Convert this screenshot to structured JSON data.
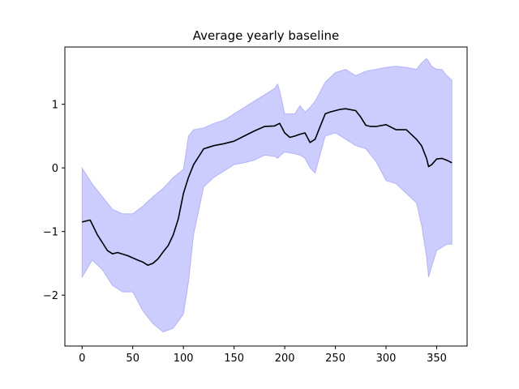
{
  "chart_data": {
    "type": "line",
    "title": "Average yearly baseline",
    "xlabel": "",
    "ylabel": "",
    "xlim": [
      -17,
      380
    ],
    "ylim": [
      -2.8,
      1.9
    ],
    "xticks": [
      0,
      50,
      100,
      150,
      200,
      250,
      300,
      350
    ],
    "xtick_labels": [
      "0",
      "50",
      "100",
      "150",
      "200",
      "250",
      "300",
      "350"
    ],
    "yticks": [
      -2,
      -1,
      0,
      1
    ],
    "ytick_labels": [
      "−2",
      "−1",
      "0",
      "1"
    ],
    "grid": false,
    "legend": "none",
    "series": [
      {
        "kind": "line",
        "color": "#000000",
        "x": [
          0,
          8,
          15,
          25,
          30,
          35,
          45,
          55,
          60,
          65,
          70,
          75,
          80,
          85,
          90,
          95,
          100,
          105,
          110,
          120,
          130,
          140,
          150,
          160,
          170,
          180,
          190,
          195,
          200,
          205,
          210,
          215,
          220,
          225,
          230,
          235,
          240,
          245,
          250,
          255,
          260,
          270,
          275,
          280,
          285,
          290,
          300,
          310,
          320,
          330,
          335,
          340,
          342,
          345,
          350,
          355,
          360,
          365
        ],
        "y": [
          -0.85,
          -0.82,
          -1.05,
          -1.3,
          -1.35,
          -1.33,
          -1.38,
          -1.45,
          -1.48,
          -1.53,
          -1.5,
          -1.43,
          -1.32,
          -1.22,
          -1.05,
          -0.8,
          -0.4,
          -0.15,
          0.05,
          0.3,
          0.35,
          0.38,
          0.42,
          0.5,
          0.58,
          0.65,
          0.66,
          0.7,
          0.55,
          0.48,
          0.5,
          0.53,
          0.55,
          0.4,
          0.45,
          0.65,
          0.85,
          0.88,
          0.9,
          0.92,
          0.93,
          0.9,
          0.8,
          0.67,
          0.65,
          0.65,
          0.68,
          0.6,
          0.6,
          0.45,
          0.35,
          0.15,
          0.02,
          0.05,
          0.14,
          0.15,
          0.12,
          0.08
        ]
      },
      {
        "kind": "band",
        "color": "#0000ff",
        "opacity": 0.2,
        "x": [
          0,
          10,
          20,
          30,
          40,
          50,
          60,
          70,
          80,
          90,
          100,
          105,
          110,
          120,
          130,
          140,
          150,
          160,
          170,
          180,
          190,
          193,
          196,
          200,
          210,
          215,
          220,
          225,
          230,
          240,
          250,
          260,
          270,
          280,
          290,
          300,
          310,
          320,
          330,
          335,
          340,
          342,
          345,
          350,
          355,
          360,
          365
        ],
        "y_upper": [
          0.0,
          -0.25,
          -0.45,
          -0.65,
          -0.72,
          -0.72,
          -0.6,
          -0.45,
          -0.32,
          -0.15,
          -0.02,
          0.5,
          0.6,
          0.63,
          0.7,
          0.75,
          0.85,
          0.95,
          1.05,
          1.15,
          1.25,
          1.32,
          1.15,
          0.85,
          0.85,
          0.98,
          0.88,
          0.95,
          1.05,
          1.35,
          1.5,
          1.55,
          1.45,
          1.52,
          1.55,
          1.58,
          1.6,
          1.58,
          1.55,
          1.65,
          1.72,
          1.68,
          1.6,
          1.55,
          1.55,
          1.45,
          1.38
        ],
        "y_lower": [
          -1.72,
          -1.45,
          -1.6,
          -1.85,
          -1.95,
          -1.95,
          -2.25,
          -2.45,
          -2.58,
          -2.52,
          -2.3,
          -1.8,
          -1.05,
          -0.3,
          -0.15,
          -0.05,
          0.05,
          0.08,
          0.12,
          0.2,
          0.18,
          0.15,
          0.2,
          0.25,
          0.22,
          0.2,
          0.15,
          0.0,
          -0.08,
          0.5,
          0.55,
          0.45,
          0.35,
          0.3,
          0.1,
          -0.2,
          -0.25,
          -0.4,
          -0.55,
          -0.9,
          -1.4,
          -1.72,
          -1.55,
          -1.3,
          -1.25,
          -1.2,
          -1.2
        ]
      }
    ]
  }
}
